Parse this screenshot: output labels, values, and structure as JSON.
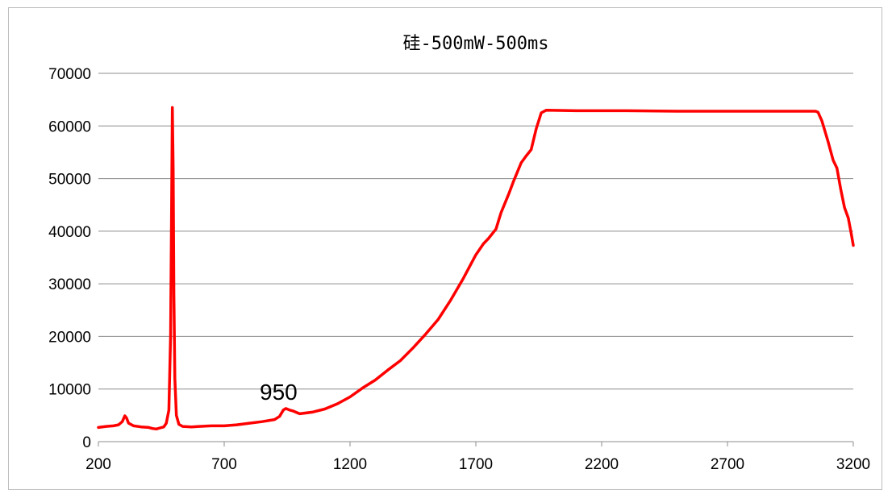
{
  "chart_data": {
    "type": "line",
    "title": "硅-500mW-500ms",
    "xlabel": "",
    "ylabel": "",
    "xlim": [
      200,
      3200
    ],
    "ylim": [
      0,
      70000
    ],
    "x_ticks": [
      200,
      700,
      1200,
      1700,
      2200,
      2700,
      3200
    ],
    "y_ticks": [
      0,
      10000,
      20000,
      30000,
      40000,
      50000,
      60000,
      70000
    ],
    "grid": "horizontal",
    "legend": "none",
    "line_color": "#ff0000",
    "annotations": [
      {
        "text": "950",
        "x": 950,
        "y": 6300
      }
    ],
    "series": [
      {
        "points": [
          [
            200,
            2700
          ],
          [
            230,
            2900
          ],
          [
            260,
            3000
          ],
          [
            280,
            3200
          ],
          [
            295,
            3800
          ],
          [
            305,
            4900
          ],
          [
            312,
            4500
          ],
          [
            320,
            3500
          ],
          [
            340,
            3000
          ],
          [
            370,
            2800
          ],
          [
            400,
            2700
          ],
          [
            415,
            2500
          ],
          [
            430,
            2400
          ],
          [
            445,
            2600
          ],
          [
            460,
            2800
          ],
          [
            470,
            3500
          ],
          [
            480,
            6000
          ],
          [
            487,
            20000
          ],
          [
            491,
            45000
          ],
          [
            494,
            63500
          ],
          [
            497,
            52000
          ],
          [
            500,
            28000
          ],
          [
            504,
            12000
          ],
          [
            510,
            5000
          ],
          [
            520,
            3300
          ],
          [
            535,
            2900
          ],
          [
            570,
            2800
          ],
          [
            600,
            2900
          ],
          [
            650,
            3000
          ],
          [
            700,
            3000
          ],
          [
            750,
            3200
          ],
          [
            800,
            3500
          ],
          [
            850,
            3800
          ],
          [
            900,
            4200
          ],
          [
            920,
            4800
          ],
          [
            935,
            6000
          ],
          [
            945,
            6300
          ],
          [
            960,
            6000
          ],
          [
            975,
            5800
          ],
          [
            990,
            5500
          ],
          [
            1000,
            5300
          ],
          [
            1050,
            5600
          ],
          [
            1100,
            6200
          ],
          [
            1150,
            7200
          ],
          [
            1200,
            8500
          ],
          [
            1250,
            10200
          ],
          [
            1300,
            11700
          ],
          [
            1350,
            13600
          ],
          [
            1400,
            15400
          ],
          [
            1450,
            17800
          ],
          [
            1500,
            20400
          ],
          [
            1550,
            23200
          ],
          [
            1600,
            26900
          ],
          [
            1650,
            31000
          ],
          [
            1700,
            35500
          ],
          [
            1730,
            37600
          ],
          [
            1750,
            38600
          ],
          [
            1780,
            40400
          ],
          [
            1800,
            43500
          ],
          [
            1830,
            47000
          ],
          [
            1850,
            49500
          ],
          [
            1880,
            53000
          ],
          [
            1900,
            54300
          ],
          [
            1920,
            55500
          ],
          [
            1940,
            59500
          ],
          [
            1960,
            62500
          ],
          [
            1980,
            63000
          ],
          [
            2100,
            62900
          ],
          [
            2300,
            62900
          ],
          [
            2500,
            62800
          ],
          [
            2700,
            62800
          ],
          [
            2900,
            62800
          ],
          [
            3050,
            62800
          ],
          [
            3060,
            62600
          ],
          [
            3075,
            61000
          ],
          [
            3100,
            57000
          ],
          [
            3120,
            53500
          ],
          [
            3135,
            52000
          ],
          [
            3150,
            48000
          ],
          [
            3165,
            44500
          ],
          [
            3180,
            42500
          ],
          [
            3192,
            39500
          ],
          [
            3200,
            37300
          ]
        ]
      }
    ]
  }
}
